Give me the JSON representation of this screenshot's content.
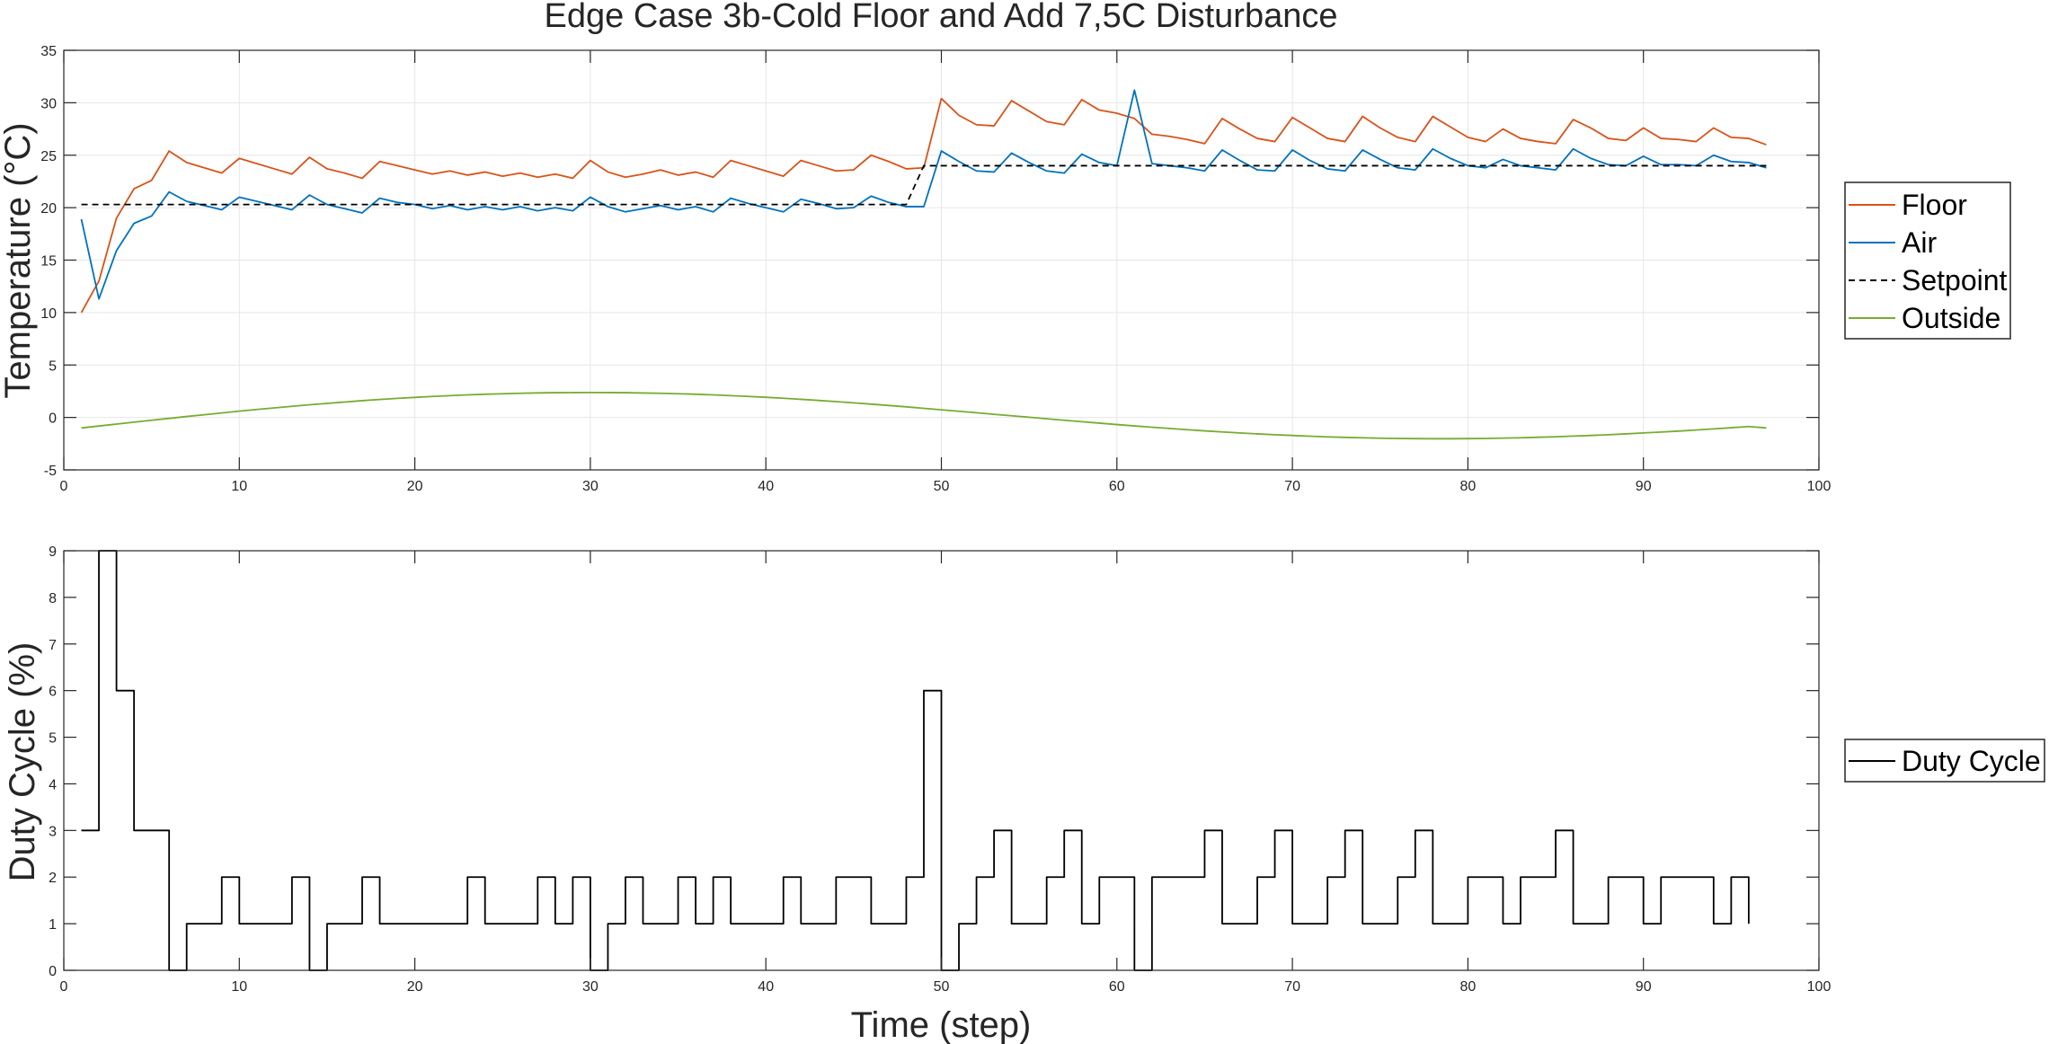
{
  "title": "Edge Case 3b-Cold Floor and Add 7,5C Disturbance",
  "colors": {
    "floor": "#D95319",
    "air": "#0072BD",
    "setpoint": "#000000",
    "outside": "#77AC30",
    "duty": "#000000",
    "grid": "#e6e6e6",
    "axis": "#262626"
  },
  "chart_data": [
    {
      "type": "line",
      "ylabel": "Temperature (°C)",
      "xlim": [
        0,
        100
      ],
      "ylim": [
        -5,
        35
      ],
      "xticks": [
        0,
        10,
        20,
        30,
        40,
        50,
        60,
        70,
        80,
        90,
        100
      ],
      "yticks": [
        -5,
        0,
        5,
        10,
        15,
        20,
        25,
        30,
        35
      ],
      "grid": true,
      "legend_position": "outside-right",
      "x": [
        1,
        2,
        3,
        4,
        5,
        6,
        7,
        8,
        9,
        10,
        11,
        12,
        13,
        14,
        15,
        16,
        17,
        18,
        19,
        20,
        21,
        22,
        23,
        24,
        25,
        26,
        27,
        28,
        29,
        30,
        31,
        32,
        33,
        34,
        35,
        36,
        37,
        38,
        39,
        40,
        41,
        42,
        43,
        44,
        45,
        46,
        47,
        48,
        49,
        50,
        51,
        52,
        53,
        54,
        55,
        56,
        57,
        58,
        59,
        60,
        61,
        62,
        63,
        64,
        65,
        66,
        67,
        68,
        69,
        70,
        71,
        72,
        73,
        74,
        75,
        76,
        77,
        78,
        79,
        80,
        81,
        82,
        83,
        84,
        85,
        86,
        87,
        88,
        89,
        90,
        91,
        92,
        93,
        94,
        95,
        96,
        97
      ],
      "series": [
        {
          "name": "Floor",
          "color": "#D95319",
          "style": "solid",
          "values": [
            10,
            13,
            19,
            21.8,
            22.6,
            25.4,
            24.3,
            23.8,
            23.3,
            24.7,
            24.2,
            23.7,
            23.2,
            24.8,
            23.7,
            23.3,
            22.8,
            24.4,
            24,
            23.6,
            23.2,
            23.5,
            23.1,
            23.4,
            23,
            23.3,
            22.9,
            23.2,
            22.8,
            24.5,
            23.4,
            22.9,
            23.2,
            23.6,
            23.1,
            23.4,
            22.9,
            24.5,
            24,
            23.5,
            23,
            24.5,
            24,
            23.5,
            23.6,
            25,
            24.4,
            23.7,
            23.8,
            30.4,
            28.8,
            27.9,
            27.8,
            30.2,
            29.2,
            28.2,
            27.9,
            30.3,
            29.3,
            29,
            28.5,
            27,
            26.8,
            26.5,
            26.1,
            28.5,
            27.5,
            26.6,
            26.3,
            28.6,
            27.6,
            26.6,
            26.3,
            28.7,
            27.6,
            26.7,
            26.3,
            28.7,
            27.7,
            26.7,
            26.3,
            27.5,
            26.6,
            26.3,
            26.1,
            28.4,
            27.6,
            26.6,
            26.4,
            27.6,
            26.6,
            26.5,
            26.3,
            27.6,
            26.7,
            26.6,
            26
          ]
        },
        {
          "name": "Air",
          "color": "#0072BD",
          "style": "solid",
          "values": [
            18.9,
            11.3,
            15.9,
            18.5,
            19.2,
            21.5,
            20.6,
            20.2,
            19.8,
            21,
            20.6,
            20.2,
            19.8,
            21.2,
            20.3,
            19.9,
            19.5,
            20.9,
            20.5,
            20.3,
            19.9,
            20.2,
            19.8,
            20.1,
            19.8,
            20.1,
            19.7,
            20,
            19.7,
            21,
            20.1,
            19.6,
            19.9,
            20.2,
            19.8,
            20.1,
            19.6,
            20.9,
            20.4,
            20,
            19.6,
            20.8,
            20.4,
            19.9,
            20,
            21.1,
            20.5,
            20.1,
            20.1,
            25.4,
            24.4,
            23.5,
            23.4,
            25.2,
            24.3,
            23.5,
            23.3,
            25.1,
            24.3,
            24,
            31.2,
            24.2,
            24,
            23.8,
            23.5,
            25.5,
            24.5,
            23.6,
            23.5,
            25.5,
            24.5,
            23.7,
            23.5,
            25.5,
            24.6,
            23.8,
            23.6,
            25.6,
            24.7,
            24,
            23.8,
            24.6,
            24,
            23.8,
            23.6,
            25.6,
            24.7,
            24.1,
            24,
            24.9,
            24.1,
            24.1,
            24,
            25,
            24.4,
            24.3,
            23.8
          ]
        },
        {
          "name": "Setpoint",
          "color": "#000000",
          "style": "dashed",
          "values": [
            20.3,
            20.3,
            20.3,
            20.3,
            20.3,
            20.3,
            20.3,
            20.3,
            20.3,
            20.3,
            20.3,
            20.3,
            20.3,
            20.3,
            20.3,
            20.3,
            20.3,
            20.3,
            20.3,
            20.3,
            20.3,
            20.3,
            20.3,
            20.3,
            20.3,
            20.3,
            20.3,
            20.3,
            20.3,
            20.3,
            20.3,
            20.3,
            20.3,
            20.3,
            20.3,
            20.3,
            20.3,
            20.3,
            20.3,
            20.3,
            20.3,
            20.3,
            20.3,
            20.3,
            20.3,
            20.3,
            20.3,
            20.3,
            24,
            24,
            24,
            24,
            24,
            24,
            24,
            24,
            24,
            24,
            24,
            24,
            24,
            24,
            24,
            24,
            24,
            24,
            24,
            24,
            24,
            24,
            24,
            24,
            24,
            24,
            24,
            24,
            24,
            24,
            24,
            24,
            24,
            24,
            24,
            24,
            24,
            24,
            24,
            24,
            24,
            24,
            24,
            24,
            24,
            24,
            24,
            24,
            24
          ]
        },
        {
          "name": "Outside",
          "color": "#77AC30",
          "style": "solid",
          "values": [
            -1,
            -0.82,
            -0.63,
            -0.45,
            -0.27,
            -0.09,
            0.09,
            0.26,
            0.43,
            0.6,
            0.76,
            0.91,
            1.06,
            1.21,
            1.34,
            1.47,
            1.6,
            1.71,
            1.82,
            1.91,
            2,
            2.08,
            2.15,
            2.21,
            2.26,
            2.3,
            2.34,
            2.36,
            2.37,
            2.38,
            2.37,
            2.36,
            2.33,
            2.3,
            2.26,
            2.21,
            2.15,
            2.08,
            2,
            1.92,
            1.83,
            1.73,
            1.62,
            1.51,
            1.39,
            1.27,
            1.14,
            1.01,
            0.87,
            0.73,
            0.59,
            0.45,
            0.3,
            0.16,
            0.02,
            -0.13,
            -0.27,
            -0.41,
            -0.54,
            -0.68,
            -0.81,
            -0.93,
            -1.05,
            -1.17,
            -1.28,
            -1.38,
            -1.48,
            -1.57,
            -1.65,
            -1.72,
            -1.79,
            -1.85,
            -1.9,
            -1.94,
            -1.98,
            -2,
            -2.02,
            -2.03,
            -2.03,
            -2.02,
            -2,
            -1.97,
            -1.94,
            -1.89,
            -1.84,
            -1.78,
            -1.72,
            -1.65,
            -1.57,
            -1.48,
            -1.39,
            -1.3,
            -1.2,
            -1.09,
            -0.98,
            -0.87,
            -1
          ]
        }
      ]
    },
    {
      "type": "line",
      "xlabel": "Time (step)",
      "ylabel": "Duty Cycle (%)",
      "xlim": [
        0,
        100
      ],
      "ylim": [
        0,
        9
      ],
      "xticks": [
        0,
        10,
        20,
        30,
        40,
        50,
        60,
        70,
        80,
        90,
        100
      ],
      "yticks": [
        0,
        1,
        2,
        3,
        4,
        5,
        6,
        7,
        8,
        9
      ],
      "grid": false,
      "legend_position": "outside-right",
      "step": true,
      "x": [
        1,
        2,
        3,
        4,
        5,
        6,
        7,
        8,
        9,
        10,
        11,
        12,
        13,
        14,
        15,
        16,
        17,
        18,
        19,
        20,
        21,
        22,
        23,
        24,
        25,
        26,
        27,
        28,
        29,
        30,
        31,
        32,
        33,
        34,
        35,
        36,
        37,
        38,
        39,
        40,
        41,
        42,
        43,
        44,
        45,
        46,
        47,
        48,
        49,
        50,
        51,
        52,
        53,
        54,
        55,
        56,
        57,
        58,
        59,
        60,
        61,
        62,
        63,
        64,
        65,
        66,
        67,
        68,
        69,
        70,
        71,
        72,
        73,
        74,
        75,
        76,
        77,
        78,
        79,
        80,
        81,
        82,
        83,
        84,
        85,
        86,
        87,
        88,
        89,
        90,
        91,
        92,
        93,
        94,
        95,
        96
      ],
      "series": [
        {
          "name": "Duty Cycle",
          "color": "#000000",
          "style": "solid",
          "values": [
            3,
            9,
            6,
            3,
            3,
            0,
            1,
            1,
            2,
            1,
            1,
            1,
            2,
            0,
            1,
            1,
            2,
            1,
            1,
            1,
            1,
            1,
            2,
            1,
            1,
            1,
            2,
            1,
            2,
            0,
            1,
            2,
            1,
            1,
            2,
            1,
            2,
            1,
            1,
            1,
            2,
            1,
            1,
            2,
            2,
            1,
            1,
            2,
            6,
            0,
            1,
            2,
            3,
            1,
            1,
            2,
            3,
            1,
            2,
            2,
            0,
            2,
            2,
            2,
            3,
            1,
            1,
            2,
            3,
            1,
            1,
            2,
            3,
            1,
            1,
            2,
            3,
            1,
            1,
            2,
            2,
            1,
            2,
            2,
            3,
            1,
            1,
            2,
            2,
            1,
            2,
            2,
            2,
            1,
            2,
            1
          ]
        }
      ]
    }
  ]
}
